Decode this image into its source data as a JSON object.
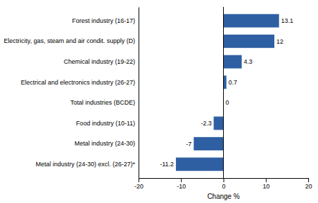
{
  "chart_data": {
    "type": "bar",
    "orientation": "horizontal",
    "categories": [
      "Metal industry (24-30) excl. (26-27)*",
      "Metal industry (24-30)",
      "Food industry (10-11)",
      "Total industries (BCDE)",
      "Electrical and electronics industry (26-27)",
      "Chemical industry (19-22)",
      "Electricity, gas, steam and air condit. supply (D)",
      "Forest industry (16-17)"
    ],
    "values": [
      -11.2,
      -7.0,
      -2.3,
      0.0,
      0.7,
      4.3,
      12.0,
      13.1
    ],
    "value_labels": [
      "-11.2",
      "-7",
      "-2.3",
      "0",
      "0.7",
      "4.3",
      "12",
      "13.1"
    ],
    "data_labels": true,
    "color": "#2E5FA3",
    "xlabel": "Change %",
    "xlim": [
      -20,
      20
    ],
    "xticks": [
      -20,
      -10,
      0,
      10,
      20
    ],
    "grid": false
  }
}
